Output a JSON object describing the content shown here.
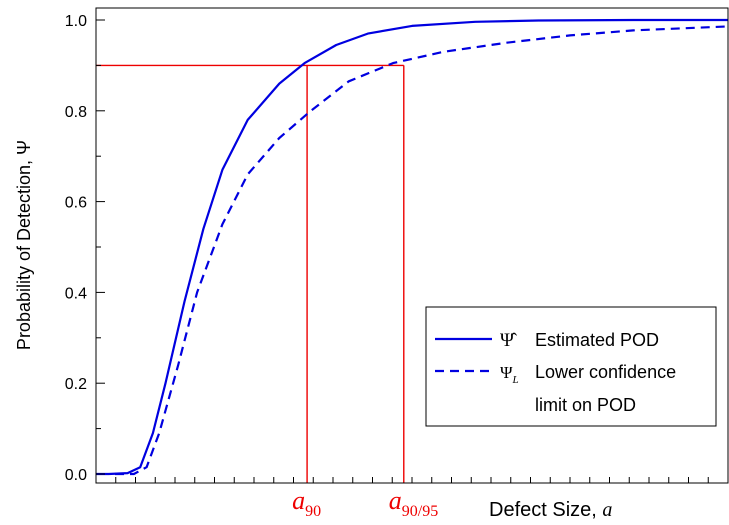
{
  "chart_data": {
    "type": "line",
    "title": "",
    "xlabel": "Defect Size, ",
    "xlabel_symbol": "a",
    "ylabel": "Probability of Detection, Ψ",
    "ylim": [
      0,
      1
    ],
    "yticks": [
      "0.0",
      "0.2",
      "0.4",
      "0.6",
      "0.8",
      "1.0"
    ],
    "xlim": [
      0,
      1
    ],
    "x_tick_count": 32,
    "grid": false,
    "legend_position": "bottom-right",
    "series": [
      {
        "name": "Estimated POD",
        "symbol": "Ψ̂",
        "style": "solid",
        "color": "#0000e0",
        "x": [
          0,
          0.02,
          0.05,
          0.07,
          0.09,
          0.11,
          0.14,
          0.17,
          0.2,
          0.24,
          0.29,
          0.33,
          0.38,
          0.43,
          0.5,
          0.6,
          0.7,
          0.85,
          1.0
        ],
        "y": [
          0.0,
          0.0,
          0.002,
          0.015,
          0.09,
          0.2,
          0.38,
          0.54,
          0.67,
          0.78,
          0.86,
          0.905,
          0.945,
          0.97,
          0.987,
          0.996,
          0.999,
          1.0,
          1.0
        ]
      },
      {
        "name": "Lower confidence limit on POD",
        "name_line1": "Lower confidence",
        "name_line2": "limit on POD",
        "symbol": "Ψ",
        "symbol_sub": "L",
        "style": "dashed",
        "color": "#0000e0",
        "x": [
          0.03,
          0.06,
          0.08,
          0.1,
          0.13,
          0.16,
          0.2,
          0.24,
          0.29,
          0.34,
          0.4,
          0.47,
          0.55,
          0.65,
          0.75,
          0.85,
          1.0
        ],
        "y": [
          0.0,
          0.0,
          0.015,
          0.09,
          0.24,
          0.4,
          0.55,
          0.66,
          0.74,
          0.8,
          0.865,
          0.905,
          0.93,
          0.95,
          0.966,
          0.977,
          0.986
        ]
      }
    ],
    "reference_lines": {
      "color": "#ee0000",
      "pod_level": 0.9,
      "markers": [
        {
          "label": "a",
          "sub": "90",
          "x": 0.334
        },
        {
          "label": "a",
          "sub": "90/95",
          "x": 0.487
        }
      ]
    }
  }
}
